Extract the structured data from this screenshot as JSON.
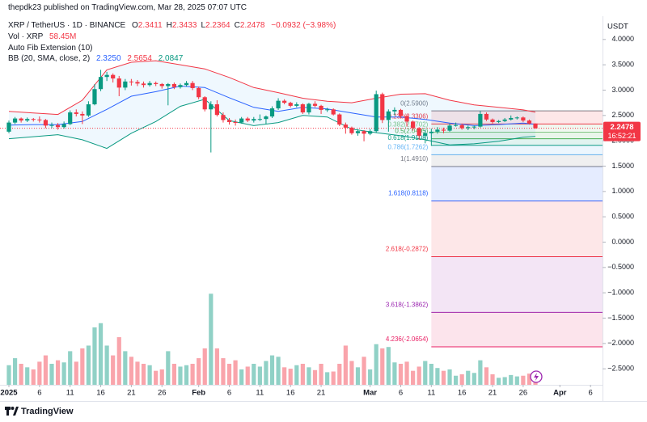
{
  "header": {
    "published": "thepdk23 published on TradingView.com, Mar 28, 2025 07:07 UTC",
    "symbol": "XRP / TetherUS · 1D · BINANCE",
    "ohlc": [
      {
        "label": "O",
        "value": "2.3411"
      },
      {
        "label": "H",
        "value": "2.3433"
      },
      {
        "label": "L",
        "value": "2.2364"
      },
      {
        "label": "C",
        "value": "2.2478"
      }
    ],
    "change": "−0.0932 (−3.98%)",
    "volume_label": "Vol · XRP",
    "volume_value": "58.45M",
    "fib_label": "Auto Fib Extension (10)",
    "bb_label": "BB (20, SMA, close, 2)",
    "bb_values": [
      "2.3250",
      "2.5654",
      "2.0847"
    ],
    "currency": "USDT"
  },
  "footer": {
    "brand": "TradingView"
  },
  "chart_data": {
    "type": "candlestick",
    "up_color": "#089981",
    "down_color": "#f23645",
    "x": [
      "2025-01-01",
      "2025-01-02",
      "2025-01-03",
      "2025-01-04",
      "2025-01-05",
      "2025-01-06",
      "2025-01-07",
      "2025-01-08",
      "2025-01-09",
      "2025-01-10",
      "2025-01-11",
      "2025-01-12",
      "2025-01-13",
      "2025-01-14",
      "2025-01-15",
      "2025-01-16",
      "2025-01-17",
      "2025-01-18",
      "2025-01-19",
      "2025-01-20",
      "2025-01-21",
      "2025-01-22",
      "2025-01-23",
      "2025-01-24",
      "2025-01-25",
      "2025-01-26",
      "2025-01-27",
      "2025-01-28",
      "2025-01-29",
      "2025-01-30",
      "2025-01-31",
      "2025-02-01",
      "2025-02-02",
      "2025-02-03",
      "2025-02-04",
      "2025-02-05",
      "2025-02-06",
      "2025-02-07",
      "2025-02-08",
      "2025-02-09",
      "2025-02-10",
      "2025-02-11",
      "2025-02-12",
      "2025-02-13",
      "2025-02-14",
      "2025-02-15",
      "2025-02-16",
      "2025-02-17",
      "2025-02-18",
      "2025-02-19",
      "2025-02-20",
      "2025-02-21",
      "2025-02-22",
      "2025-02-23",
      "2025-02-24",
      "2025-02-25",
      "2025-02-26",
      "2025-02-27",
      "2025-02-28",
      "2025-03-01",
      "2025-03-02",
      "2025-03-03",
      "2025-03-04",
      "2025-03-05",
      "2025-03-06",
      "2025-03-07",
      "2025-03-08",
      "2025-03-09",
      "2025-03-10",
      "2025-03-11",
      "2025-03-12",
      "2025-03-13",
      "2025-03-14",
      "2025-03-15",
      "2025-03-16",
      "2025-03-17",
      "2025-03-18",
      "2025-03-19",
      "2025-03-20",
      "2025-03-21",
      "2025-03-22",
      "2025-03-23",
      "2025-03-24",
      "2025-03-25",
      "2025-03-26",
      "2025-03-27",
      "2025-03-28"
    ],
    "open": [
      2.18,
      2.36,
      2.44,
      2.4,
      2.43,
      2.42,
      2.41,
      2.3,
      2.31,
      2.27,
      2.33,
      2.56,
      2.53,
      2.5,
      2.72,
      3.02,
      3.26,
      3.3,
      3.23,
      3.05,
      3.17,
      3.16,
      3.13,
      3.1,
      3.14,
      3.12,
      3.08,
      3.12,
      3.06,
      3.1,
      3.14,
      3.04,
      2.86,
      2.62,
      2.72,
      2.51,
      2.41,
      2.37,
      2.36,
      2.44,
      2.4,
      2.43,
      2.43,
      2.48,
      2.64,
      2.79,
      2.75,
      2.69,
      2.72,
      2.56,
      2.73,
      2.69,
      2.61,
      2.62,
      2.52,
      2.32,
      2.26,
      2.15,
      2.19,
      2.14,
      2.19,
      2.92,
      2.41,
      2.58,
      2.61,
      2.49,
      2.38,
      2.25,
      2.1,
      2.15,
      2.18,
      2.22,
      2.2,
      2.3,
      2.31,
      2.25,
      2.27,
      2.28,
      2.53,
      2.42,
      2.37,
      2.39,
      2.42,
      2.45,
      2.46,
      2.4,
      2.3411
    ],
    "high": [
      2.4,
      2.47,
      2.46,
      2.46,
      2.45,
      2.48,
      2.43,
      2.36,
      2.35,
      2.38,
      2.6,
      2.62,
      2.58,
      2.78,
      3.12,
      3.4,
      3.36,
      3.33,
      3.28,
      3.22,
      3.22,
      3.2,
      3.17,
      3.18,
      3.17,
      3.14,
      3.14,
      3.15,
      3.13,
      3.18,
      3.18,
      3.07,
      2.88,
      2.78,
      2.8,
      2.56,
      2.45,
      2.42,
      2.47,
      2.47,
      2.47,
      2.52,
      2.5,
      2.68,
      2.84,
      2.82,
      2.77,
      2.76,
      2.74,
      2.75,
      2.78,
      2.71,
      2.65,
      2.64,
      2.54,
      2.36,
      2.28,
      2.23,
      2.21,
      2.23,
      2.99,
      2.95,
      2.62,
      2.66,
      2.63,
      2.52,
      2.4,
      2.27,
      2.22,
      2.24,
      2.27,
      2.26,
      2.34,
      2.36,
      2.34,
      2.3,
      2.3,
      2.59,
      2.56,
      2.44,
      2.41,
      2.45,
      2.5,
      2.48,
      2.48,
      2.42,
      2.3433
    ],
    "low": [
      2.15,
      2.33,
      2.36,
      2.37,
      2.38,
      2.36,
      2.25,
      2.25,
      2.22,
      2.24,
      2.31,
      2.48,
      2.33,
      2.47,
      2.7,
      2.98,
      3.18,
      3.15,
      2.88,
      3.0,
      3.09,
      3.08,
      3.05,
      3.07,
      3.08,
      3.03,
      2.7,
      3.02,
      3.03,
      3.07,
      3.0,
      2.82,
      2.58,
      1.77,
      2.48,
      2.36,
      2.32,
      2.3,
      2.34,
      2.37,
      2.36,
      2.39,
      2.33,
      2.45,
      2.61,
      2.72,
      2.66,
      2.66,
      2.53,
      2.52,
      2.66,
      2.53,
      2.57,
      2.5,
      2.29,
      2.14,
      2.12,
      2.1,
      1.99,
      2.11,
      2.16,
      2.35,
      2.18,
      2.5,
      2.44,
      2.28,
      2.2,
      2.02,
      1.95,
      1.9,
      2.14,
      2.15,
      2.18,
      2.28,
      2.22,
      2.21,
      2.23,
      2.26,
      2.39,
      2.34,
      2.35,
      2.37,
      2.4,
      2.42,
      2.37,
      2.32,
      2.2364
    ],
    "close": [
      2.36,
      2.44,
      2.4,
      2.43,
      2.42,
      2.41,
      2.3,
      2.31,
      2.27,
      2.33,
      2.56,
      2.53,
      2.5,
      2.72,
      3.02,
      3.26,
      3.3,
      3.23,
      3.05,
      3.17,
      3.16,
      3.13,
      3.1,
      3.14,
      3.12,
      3.08,
      3.12,
      3.06,
      3.1,
      3.14,
      3.04,
      2.86,
      2.62,
      2.72,
      2.51,
      2.41,
      2.37,
      2.36,
      2.44,
      2.4,
      2.43,
      2.43,
      2.48,
      2.64,
      2.79,
      2.75,
      2.69,
      2.72,
      2.56,
      2.73,
      2.69,
      2.61,
      2.62,
      2.52,
      2.32,
      2.26,
      2.15,
      2.19,
      2.14,
      2.19,
      2.92,
      2.41,
      2.58,
      2.61,
      2.49,
      2.38,
      2.25,
      2.1,
      2.15,
      2.18,
      2.22,
      2.2,
      2.3,
      2.31,
      2.25,
      2.27,
      2.28,
      2.53,
      2.42,
      2.37,
      2.39,
      2.42,
      2.45,
      2.46,
      2.4,
      2.3411,
      2.2478
    ],
    "volume": [
      280,
      380,
      300,
      250,
      220,
      330,
      420,
      300,
      350,
      320,
      480,
      330,
      520,
      560,
      820,
      880,
      560,
      420,
      680,
      480,
      400,
      330,
      300,
      280,
      200,
      220,
      480,
      300,
      260,
      280,
      300,
      380,
      520,
      1300,
      520,
      380,
      300,
      350,
      220,
      260,
      300,
      260,
      340,
      420,
      400,
      250,
      230,
      280,
      300,
      250,
      210,
      300,
      180,
      190,
      300,
      560,
      340,
      250,
      400,
      220,
      580,
      520,
      540,
      320,
      300,
      330,
      200,
      260,
      340,
      300,
      240,
      200,
      220,
      130,
      150,
      200,
      170,
      350,
      250,
      150,
      100,
      110,
      140,
      120,
      130,
      160,
      58.45
    ],
    "volume_lim": [
      0,
      1500
    ],
    "ylim": [
      -2.8,
      4.3
    ],
    "yticks": [
      {
        "value": 4,
        "label": "4.0000"
      },
      {
        "value": 3.5,
        "label": "3.5000"
      },
      {
        "value": 3,
        "label": "3.0000"
      },
      {
        "value": 2.5,
        "label": "2.5000"
      },
      {
        "value": 2,
        "label": "2.0000"
      },
      {
        "value": 1.5,
        "label": "1.5000"
      },
      {
        "value": 1,
        "label": "1.0000"
      },
      {
        "value": 0.5,
        "label": "0.5000"
      },
      {
        "value": 0,
        "label": "0.0000"
      },
      {
        "value": -0.5,
        "label": "−0.5000"
      },
      {
        "value": -1,
        "label": "−1.0000"
      },
      {
        "value": -1.5,
        "label": "−1.5000"
      },
      {
        "value": -2,
        "label": "−2.0000"
      },
      {
        "value": -2.5,
        "label": "−2.5000"
      }
    ],
    "xticks": [
      {
        "value": "2025-01-01",
        "label": "2025"
      },
      {
        "value": "2025-01-06",
        "label": "6"
      },
      {
        "value": "2025-01-11",
        "label": "11"
      },
      {
        "value": "2025-01-16",
        "label": "16"
      },
      {
        "value": "2025-01-21",
        "label": "21"
      },
      {
        "value": "2025-01-26",
        "label": "26"
      },
      {
        "value": "2025-02-01",
        "label": "Feb"
      },
      {
        "value": "2025-02-06",
        "label": "6"
      },
      {
        "value": "2025-02-11",
        "label": "11"
      },
      {
        "value": "2025-02-16",
        "label": "16"
      },
      {
        "value": "2025-02-21",
        "label": "21"
      },
      {
        "value": "2025-03-01",
        "label": "Mar"
      },
      {
        "value": "2025-03-06",
        "label": "6"
      },
      {
        "value": "2025-03-11",
        "label": "11"
      },
      {
        "value": "2025-03-16",
        "label": "16"
      },
      {
        "value": "2025-03-21",
        "label": "21"
      },
      {
        "value": "2025-03-26",
        "label": "26"
      },
      {
        "value": "2025-04-01",
        "label": "Apr"
      },
      {
        "value": "2025-04-06",
        "label": "6"
      }
    ],
    "price_label": {
      "value": 2.2478,
      "label": "2.2478",
      "countdown": "16:52:21"
    },
    "bollinger": {
      "upper_color": "#f23645",
      "middle_color": "#2962ff",
      "lower_color": "#089981",
      "x": [
        "2025-01-01",
        "2025-01-05",
        "2025-01-09",
        "2025-01-13",
        "2025-01-17",
        "2025-01-21",
        "2025-01-25",
        "2025-01-29",
        "2025-02-02",
        "2025-02-06",
        "2025-02-10",
        "2025-02-14",
        "2025-02-18",
        "2025-02-22",
        "2025-02-26",
        "2025-03-02",
        "2025-03-06",
        "2025-03-10",
        "2025-03-14",
        "2025-03-18",
        "2025-03-22",
        "2025-03-26",
        "2025-03-28"
      ],
      "upper": [
        2.58,
        2.55,
        2.52,
        2.8,
        3.4,
        3.55,
        3.58,
        3.5,
        3.42,
        3.25,
        3.05,
        2.95,
        2.84,
        2.78,
        2.75,
        2.84,
        2.92,
        2.93,
        2.8,
        2.71,
        2.66,
        2.61,
        2.5654
      ],
      "middle": [
        2.31,
        2.32,
        2.32,
        2.38,
        2.62,
        2.88,
        2.97,
        3.08,
        3.05,
        2.85,
        2.66,
        2.58,
        2.66,
        2.63,
        2.55,
        2.47,
        2.47,
        2.42,
        2.35,
        2.3,
        2.32,
        2.35,
        2.325
      ],
      "lower": [
        2.04,
        2.08,
        2.12,
        2.02,
        1.85,
        2.15,
        2.38,
        2.68,
        2.82,
        2.4,
        2.3,
        2.36,
        2.5,
        2.47,
        2.23,
        2.16,
        2.1,
        2.02,
        1.92,
        1.94,
        1.99,
        2.07,
        2.0847
      ]
    },
    "fib": {
      "start": "2025-03-11",
      "levels": [
        {
          "price": 2.59,
          "label": "0(2.5900)",
          "color": "#787b86"
        },
        {
          "price": 2.3306,
          "label": "0.236(2.3306)",
          "color": "#f23645"
        },
        {
          "price": 2.1702,
          "label": "0.382(2.1702)",
          "color": "#81c784"
        },
        {
          "price": 2.0405,
          "label": "0.5(2.0405)",
          "color": "#4caf50"
        },
        {
          "price": 1.9108,
          "label": "0.618(1.9108)",
          "color": "#089981"
        },
        {
          "price": 1.7262,
          "label": "0.786(1.7262)",
          "color": "#64b5f6"
        },
        {
          "price": 1.491,
          "label": "1(1.4910)",
          "color": "#787b86"
        },
        {
          "price": 0.8118,
          "label": "1.618(0.8118)",
          "color": "#2962ff"
        },
        {
          "price": -0.2872,
          "label": "2.618(-0.2872)",
          "color": "#f23645"
        },
        {
          "price": -1.3862,
          "label": "3.618(-1.3862)",
          "color": "#9c27b0"
        },
        {
          "price": -2.0654,
          "label": "4.236(-2.0654)",
          "color": "#e91e63"
        }
      ]
    }
  }
}
